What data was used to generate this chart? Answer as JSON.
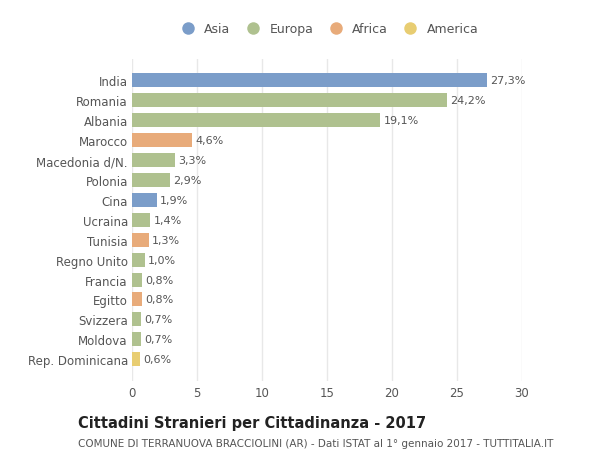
{
  "countries": [
    "India",
    "Romania",
    "Albania",
    "Marocco",
    "Macedonia d/N.",
    "Polonia",
    "Cina",
    "Ucraina",
    "Tunisia",
    "Regno Unito",
    "Francia",
    "Egitto",
    "Svizzera",
    "Moldova",
    "Rep. Dominicana"
  ],
  "values": [
    27.3,
    24.2,
    19.1,
    4.6,
    3.3,
    2.9,
    1.9,
    1.4,
    1.3,
    1.0,
    0.8,
    0.8,
    0.7,
    0.7,
    0.6
  ],
  "labels": [
    "27,3%",
    "24,2%",
    "19,1%",
    "4,6%",
    "3,3%",
    "2,9%",
    "1,9%",
    "1,4%",
    "1,3%",
    "1,0%",
    "0,8%",
    "0,8%",
    "0,7%",
    "0,7%",
    "0,6%"
  ],
  "continents": [
    "Asia",
    "Europa",
    "Europa",
    "Africa",
    "Europa",
    "Europa",
    "Asia",
    "Europa",
    "Africa",
    "Europa",
    "Europa",
    "Africa",
    "Europa",
    "Europa",
    "America"
  ],
  "colors": {
    "Asia": "#7b9dc9",
    "Europa": "#afc18f",
    "Africa": "#e8ab7a",
    "America": "#e8cd72"
  },
  "legend_order": [
    "Asia",
    "Europa",
    "Africa",
    "America"
  ],
  "title": "Cittadini Stranieri per Cittadinanza - 2017",
  "subtitle": "COMUNE DI TERRANUOVA BRACCIOLINI (AR) - Dati ISTAT al 1° gennaio 2017 - TUTTITALIA.IT",
  "xlim": [
    0,
    30
  ],
  "xticks": [
    0,
    5,
    10,
    15,
    20,
    25,
    30
  ],
  "background_color": "#ffffff",
  "plot_bg_color": "#ffffff",
  "grid_color": "#e8e8e8",
  "bar_height": 0.7,
  "label_fontsize": 8,
  "title_fontsize": 10.5,
  "subtitle_fontsize": 7.5,
  "tick_fontsize": 8.5,
  "legend_fontsize": 9
}
